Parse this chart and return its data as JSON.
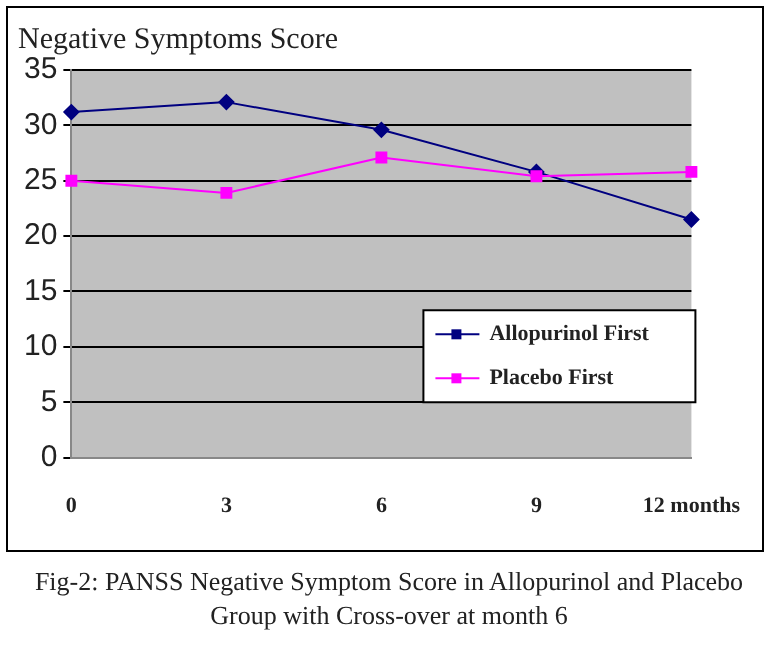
{
  "chart_data": {
    "type": "line",
    "title": "Negative Symptoms Score",
    "categories": [
      "0",
      "3",
      "6",
      "9",
      "12 months"
    ],
    "series": [
      {
        "name": "Allopurinol First",
        "color": "#000080",
        "values": [
          31.2,
          32.1,
          29.6,
          25.8,
          21.5
        ],
        "marker": "diamond"
      },
      {
        "name": "Placebo First",
        "color": "#ff00ff",
        "values": [
          25.0,
          23.9,
          27.1,
          25.4,
          25.8
        ],
        "marker": "square"
      }
    ],
    "ylim": [
      0,
      35
    ],
    "yticks": [
      0,
      5,
      10,
      15,
      20,
      25,
      30,
      35
    ],
    "grid": "y",
    "legend": "right",
    "annotations": [
      "Fig-2: PANSS Negative Symptom Score in Allopurinol and Placebo Group with Cross-over at month 6"
    ]
  }
}
